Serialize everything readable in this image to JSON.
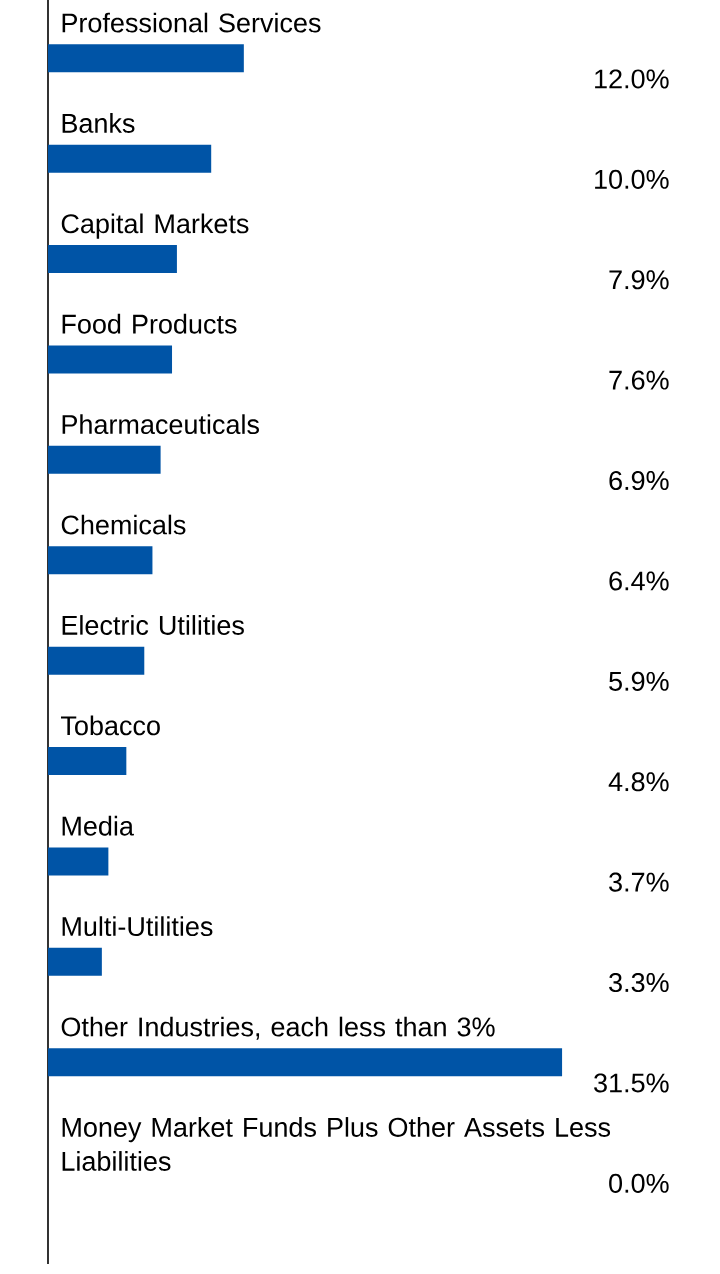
{
  "chart_data": {
    "type": "bar",
    "orientation": "horizontal",
    "color": "#0054a6",
    "categories": [
      "Professional Services",
      "Banks",
      "Capital Markets",
      "Food Products",
      "Pharmaceuticals",
      "Chemicals",
      "Electric Utilities",
      "Tobacco",
      "Media",
      "Multi-Utilities",
      "Other Industries, each less than 3%",
      "Money Market Funds Plus Other Assets Less Liabilities"
    ],
    "values": [
      12.0,
      10.0,
      7.9,
      7.6,
      6.9,
      6.4,
      5.9,
      4.8,
      3.7,
      3.3,
      31.5,
      0.0
    ],
    "value_labels": [
      "12.0%",
      "10.0%",
      "7.9%",
      "7.6%",
      "6.9%",
      "6.4%",
      "5.9%",
      "4.8%",
      "3.7%",
      "3.3%",
      "31.5%",
      "0.0%"
    ]
  }
}
